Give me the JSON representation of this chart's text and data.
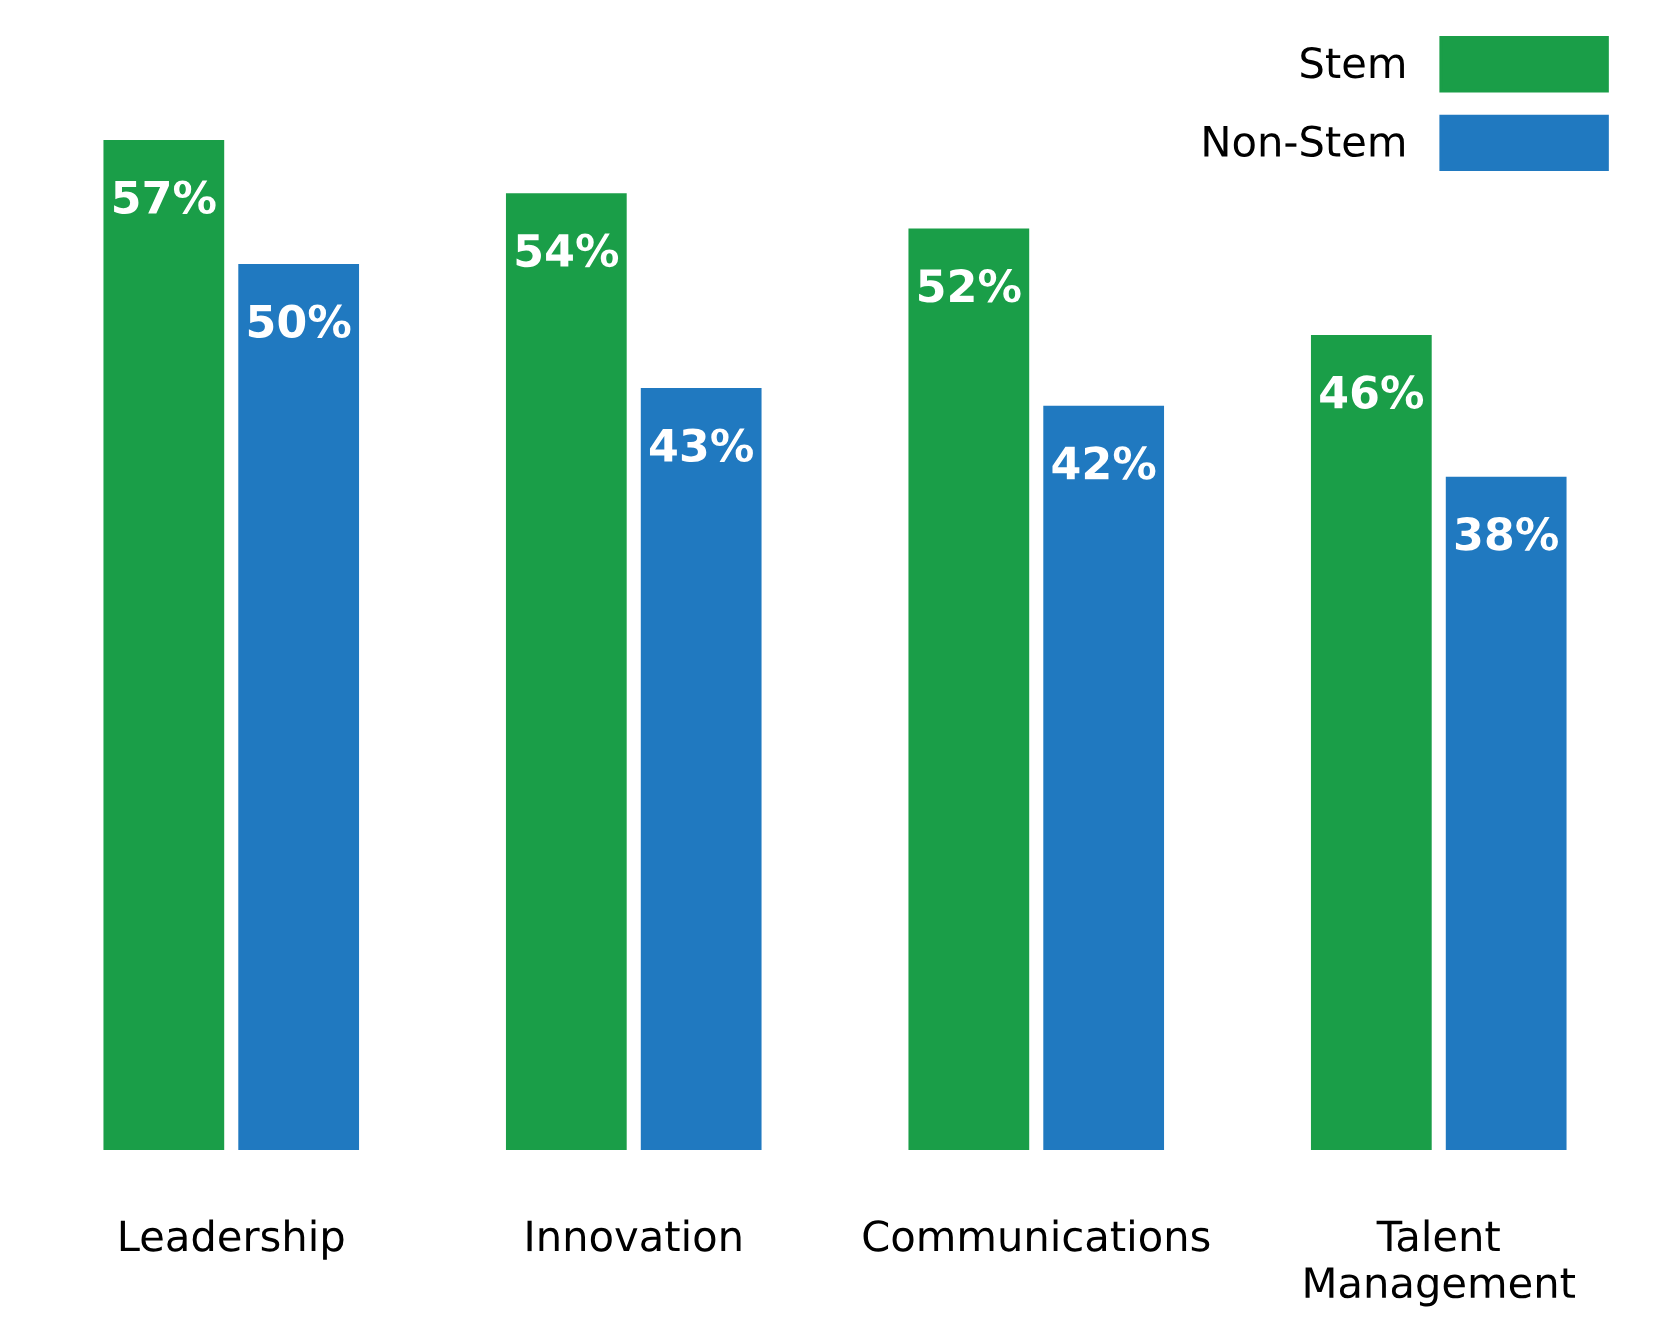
{
  "chart_data": {
    "type": "bar",
    "categories": [
      "Leadership",
      "Innovation",
      "Communications",
      "Talent\nManagement"
    ],
    "series": [
      {
        "name": "Stem",
        "color": "#1a9e48",
        "values": [
          57,
          54,
          52,
          46
        ],
        "value_labels": [
          "57%",
          "54%",
          "52%",
          "46%"
        ]
      },
      {
        "name": "Non-Stem",
        "color": "#2079c0",
        "values": [
          50,
          43,
          42,
          38
        ],
        "value_labels": [
          "50%",
          "43%",
          "42%",
          "38%"
        ]
      }
    ],
    "legend": "top right",
    "grid": false
  }
}
